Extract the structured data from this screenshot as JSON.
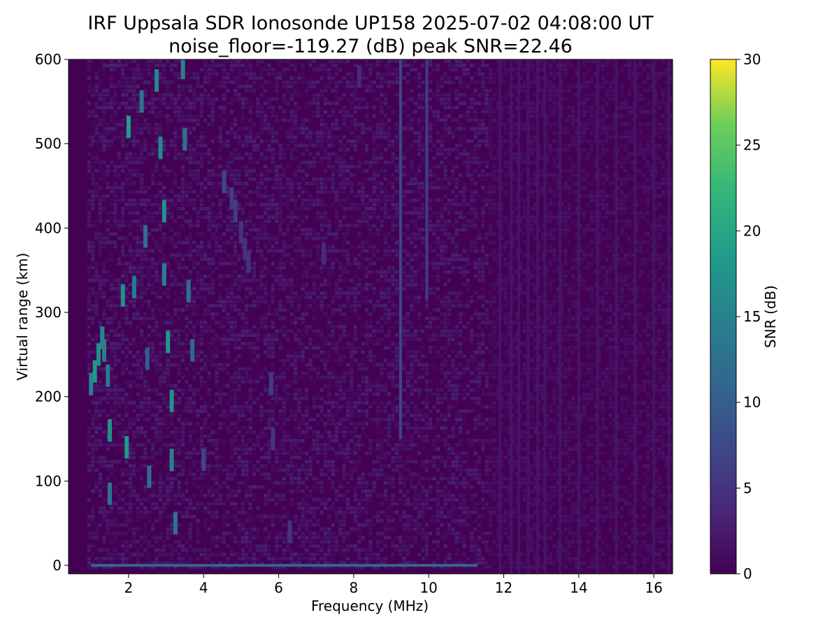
{
  "chart_data": {
    "type": "heatmap",
    "title": "IRF Uppsala SDR Ionosonde UP158 2025-07-02 04:08:00  UT",
    "subtitle": "noise_floor=-119.27 (dB) peak SNR=22.46",
    "xlabel": "Frequency (MHz)",
    "ylabel": "Virtual range (km)",
    "colorbar_label": "SNR (dB)",
    "colormap": "viridis",
    "xlim": [
      0.4,
      16.5
    ],
    "ylim": [
      -10,
      600
    ],
    "clim": [
      0,
      30
    ],
    "x_ticks": [
      "2",
      "4",
      "6",
      "8",
      "10",
      "12",
      "14",
      "16"
    ],
    "y_ticks": [
      "0",
      "100",
      "200",
      "300",
      "400",
      "500",
      "600"
    ],
    "colorbar_ticks": [
      "0",
      "5",
      "10",
      "15",
      "20",
      "25",
      "30"
    ],
    "echoes": [
      {
        "f": 1.0,
        "r": 215,
        "snr": 15
      },
      {
        "f": 1.1,
        "r": 230,
        "snr": 18
      },
      {
        "f": 1.2,
        "r": 250,
        "snr": 17
      },
      {
        "f": 1.3,
        "r": 270,
        "snr": 16
      },
      {
        "f": 1.35,
        "r": 255,
        "snr": 14
      },
      {
        "f": 1.45,
        "r": 225,
        "snr": 14
      },
      {
        "f": 1.5,
        "r": 160,
        "snr": 17
      },
      {
        "f": 1.5,
        "r": 85,
        "snr": 13
      },
      {
        "f": 1.85,
        "r": 320,
        "snr": 17
      },
      {
        "f": 1.95,
        "r": 140,
        "snr": 18
      },
      {
        "f": 2.0,
        "r": 520,
        "snr": 19
      },
      {
        "f": 2.15,
        "r": 330,
        "snr": 14
      },
      {
        "f": 2.35,
        "r": 550,
        "snr": 13
      },
      {
        "f": 2.45,
        "r": 390,
        "snr": 12
      },
      {
        "f": 2.5,
        "r": 245,
        "snr": 10
      },
      {
        "f": 2.55,
        "r": 105,
        "snr": 12
      },
      {
        "f": 2.75,
        "r": 575,
        "snr": 16
      },
      {
        "f": 2.85,
        "r": 495,
        "snr": 16
      },
      {
        "f": 2.95,
        "r": 420,
        "snr": 17
      },
      {
        "f": 2.95,
        "r": 345,
        "snr": 15
      },
      {
        "f": 3.05,
        "r": 265,
        "snr": 18
      },
      {
        "f": 3.15,
        "r": 195,
        "snr": 17
      },
      {
        "f": 3.15,
        "r": 125,
        "snr": 15
      },
      {
        "f": 3.25,
        "r": 50,
        "snr": 13
      },
      {
        "f": 3.45,
        "r": 590,
        "snr": 15
      },
      {
        "f": 3.5,
        "r": 505,
        "snr": 13
      },
      {
        "f": 3.6,
        "r": 325,
        "snr": 12
      },
      {
        "f": 3.7,
        "r": 255,
        "snr": 11
      },
      {
        "f": 4.0,
        "r": 125,
        "snr": 7
      },
      {
        "f": 4.55,
        "r": 455,
        "snr": 7
      },
      {
        "f": 4.75,
        "r": 435,
        "snr": 6
      },
      {
        "f": 4.85,
        "r": 420,
        "snr": 6
      },
      {
        "f": 5.0,
        "r": 395,
        "snr": 5
      },
      {
        "f": 5.1,
        "r": 375,
        "snr": 5
      },
      {
        "f": 5.2,
        "r": 360,
        "snr": 5
      },
      {
        "f": 5.8,
        "r": 215,
        "snr": 6
      },
      {
        "f": 5.85,
        "r": 150,
        "snr": 5
      },
      {
        "f": 6.3,
        "r": 40,
        "snr": 5
      },
      {
        "f": 7.2,
        "r": 370,
        "snr": 4
      },
      {
        "f": 8.15,
        "r": 580,
        "snr": 4
      }
    ],
    "range_lines": [
      {
        "f": 9.25,
        "r_from": 150,
        "r_to": 600,
        "snr": 7
      },
      {
        "f": 9.95,
        "r_from": 315,
        "r_to": 600,
        "snr": 6
      }
    ],
    "ground_echo": {
      "r": 0,
      "f_from": 1.0,
      "f_to": 11.3,
      "snr": 11
    },
    "interference_columns": [
      11.9,
      12.2,
      12.4,
      12.65,
      12.9,
      13.1,
      13.5,
      14.0,
      14.5,
      15.0,
      15.5,
      16.0,
      16.4
    ]
  }
}
